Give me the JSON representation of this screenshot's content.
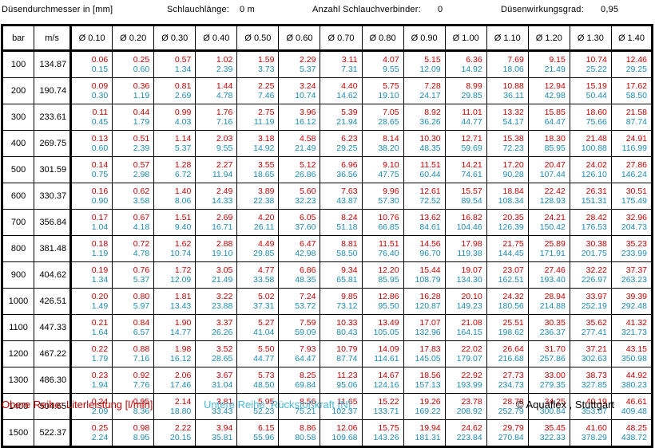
{
  "header": {
    "diameter_label": "Düsendurchmesser in [mm]",
    "hose_length_label": "Schlauchlänge:",
    "hose_length_value": "0 m",
    "connectors_label": "Anzahl Schlauchverbinder:",
    "connectors_value": "0",
    "efficiency_label": "Düsenwirkungsgrad:",
    "efficiency_value": "0,95"
  },
  "table": {
    "col_bar": "bar",
    "col_ms": "m/s",
    "nozzles": [
      "Ø 0.10",
      "Ø 0.20",
      "Ø 0.30",
      "Ø 0.40",
      "Ø 0.50",
      "Ø 0.60",
      "Ø 0.70",
      "Ø 0.80",
      "Ø 0.90",
      "Ø 1.00",
      "Ø 1.10",
      "Ø 1.20",
      "Ø 1.30",
      "Ø 1.40"
    ],
    "rows": [
      {
        "bar": "100",
        "ms": "134.87",
        "cells": [
          [
            "0.06",
            "0.15"
          ],
          [
            "0.25",
            "0.60"
          ],
          [
            "0.57",
            "1.34"
          ],
          [
            "1.02",
            "2.39"
          ],
          [
            "1.59",
            "3.73"
          ],
          [
            "2.29",
            "5.37"
          ],
          [
            "3.11",
            "7.31"
          ],
          [
            "4.07",
            "9.55"
          ],
          [
            "5.15",
            "12.09"
          ],
          [
            "6.36",
            "14.92"
          ],
          [
            "7.69",
            "18.06"
          ],
          [
            "9.15",
            "21.49"
          ],
          [
            "10.74",
            "25.22"
          ],
          [
            "12.46",
            "29.25"
          ]
        ]
      },
      {
        "bar": "200",
        "ms": "190.74",
        "cells": [
          [
            "0.09",
            "0.30"
          ],
          [
            "0.36",
            "1.19"
          ],
          [
            "0.81",
            "2.69"
          ],
          [
            "1.44",
            "4.78"
          ],
          [
            "2.25",
            "7.46"
          ],
          [
            "3.24",
            "10.74"
          ],
          [
            "4.40",
            "14.62"
          ],
          [
            "5.75",
            "19.10"
          ],
          [
            "7.28",
            "24.17"
          ],
          [
            "8.99",
            "29.85"
          ],
          [
            "10.88",
            "36.11"
          ],
          [
            "12.94",
            "42.98"
          ],
          [
            "15.19",
            "50.44"
          ],
          [
            "17.62",
            "58.50"
          ]
        ]
      },
      {
        "bar": "300",
        "ms": "233.61",
        "cells": [
          [
            "0.11",
            "0.45"
          ],
          [
            "0.44",
            "1.79"
          ],
          [
            "0.99",
            "4.03"
          ],
          [
            "1.76",
            "7.16"
          ],
          [
            "2.75",
            "11.19"
          ],
          [
            "3.96",
            "16.12"
          ],
          [
            "5.39",
            "21.94"
          ],
          [
            "7.05",
            "28.65"
          ],
          [
            "8.92",
            "36.26"
          ],
          [
            "11.01",
            "44.77"
          ],
          [
            "13.32",
            "54.17"
          ],
          [
            "15.85",
            "64.47"
          ],
          [
            "18.60",
            "75.66"
          ],
          [
            "21.58",
            "87.74"
          ]
        ]
      },
      {
        "bar": "400",
        "ms": "269.75",
        "cells": [
          [
            "0.13",
            "0.60"
          ],
          [
            "0.51",
            "2.39"
          ],
          [
            "1.14",
            "5.37"
          ],
          [
            "2.03",
            "9.55"
          ],
          [
            "3.18",
            "14.92"
          ],
          [
            "4.58",
            "21.49"
          ],
          [
            "6.23",
            "29.25"
          ],
          [
            "8.14",
            "38.20"
          ],
          [
            "10.30",
            "48.35"
          ],
          [
            "12.71",
            "59.69"
          ],
          [
            "15.38",
            "72.23"
          ],
          [
            "18.30",
            "85.95"
          ],
          [
            "21.48",
            "100.88"
          ],
          [
            "24.91",
            "116.99"
          ]
        ]
      },
      {
        "bar": "500",
        "ms": "301.59",
        "cells": [
          [
            "0.14",
            "0.75"
          ],
          [
            "0.57",
            "2.98"
          ],
          [
            "1.28",
            "6.72"
          ],
          [
            "2.27",
            "11.94"
          ],
          [
            "3.55",
            "18.65"
          ],
          [
            "5.12",
            "26.86"
          ],
          [
            "6.96",
            "36.56"
          ],
          [
            "9.10",
            "47.75"
          ],
          [
            "11.51",
            "60.44"
          ],
          [
            "14.21",
            "74.61"
          ],
          [
            "17.20",
            "90.28"
          ],
          [
            "20.47",
            "107.44"
          ],
          [
            "24.02",
            "126.10"
          ],
          [
            "27.86",
            "146.24"
          ]
        ]
      },
      {
        "bar": "600",
        "ms": "330.37",
        "cells": [
          [
            "0.16",
            "0.90"
          ],
          [
            "0.62",
            "3.58"
          ],
          [
            "1.40",
            "8.06"
          ],
          [
            "2.49",
            "14.33"
          ],
          [
            "3.89",
            "22.38"
          ],
          [
            "5.60",
            "32.23"
          ],
          [
            "7.63",
            "43.87"
          ],
          [
            "9.96",
            "57.30"
          ],
          [
            "12.61",
            "72.52"
          ],
          [
            "15.57",
            "89.54"
          ],
          [
            "18.84",
            "108.34"
          ],
          [
            "22.42",
            "128.93"
          ],
          [
            "26.31",
            "151.31"
          ],
          [
            "30.51",
            "175.49"
          ]
        ]
      },
      {
        "bar": "700",
        "ms": "356.84",
        "cells": [
          [
            "0.17",
            "1.04"
          ],
          [
            "0.67",
            "4.18"
          ],
          [
            "1.51",
            "9.40"
          ],
          [
            "2.69",
            "16.71"
          ],
          [
            "4.20",
            "26.11"
          ],
          [
            "6.05",
            "37.60"
          ],
          [
            "8.24",
            "51.18"
          ],
          [
            "10.76",
            "66.85"
          ],
          [
            "13.62",
            "84.61"
          ],
          [
            "16.82",
            "104.46"
          ],
          [
            "20.35",
            "126.39"
          ],
          [
            "24.21",
            "150.42"
          ],
          [
            "28.42",
            "176.53"
          ],
          [
            "32.96",
            "204.73"
          ]
        ]
      },
      {
        "bar": "800",
        "ms": "381.48",
        "cells": [
          [
            "0.18",
            "1.19"
          ],
          [
            "0.72",
            "4.78"
          ],
          [
            "1.62",
            "10.74"
          ],
          [
            "2.88",
            "19.10"
          ],
          [
            "4.49",
            "29.85"
          ],
          [
            "6.47",
            "42.98"
          ],
          [
            "8.81",
            "58.50"
          ],
          [
            "11.51",
            "76.40"
          ],
          [
            "14.56",
            "96.70"
          ],
          [
            "17.98",
            "119.38"
          ],
          [
            "21.75",
            "144.45"
          ],
          [
            "25.89",
            "171.91"
          ],
          [
            "30.38",
            "201.75"
          ],
          [
            "35.23",
            "233.99"
          ]
        ]
      },
      {
        "bar": "900",
        "ms": "404.62",
        "cells": [
          [
            "0.19",
            "1.34"
          ],
          [
            "0.76",
            "5.37"
          ],
          [
            "1.72",
            "12.09"
          ],
          [
            "3.05",
            "21.49"
          ],
          [
            "4.77",
            "33.58"
          ],
          [
            "6.86",
            "48.35"
          ],
          [
            "9.34",
            "65.81"
          ],
          [
            "12.20",
            "85.95"
          ],
          [
            "15.44",
            "108.79"
          ],
          [
            "19.07",
            "134.30"
          ],
          [
            "23.07",
            "162.51"
          ],
          [
            "27.46",
            "193.40"
          ],
          [
            "32.22",
            "226.97"
          ],
          [
            "37.37",
            "263.23"
          ]
        ]
      },
      {
        "bar": "1000",
        "ms": "426.51",
        "cells": [
          [
            "0.20",
            "1.49"
          ],
          [
            "0.80",
            "5.97"
          ],
          [
            "1.81",
            "13.43"
          ],
          [
            "3.22",
            "23.88"
          ],
          [
            "5.02",
            "37.31"
          ],
          [
            "7.24",
            "53.72"
          ],
          [
            "9.85",
            "73.12"
          ],
          [
            "12.86",
            "95.50"
          ],
          [
            "16.28",
            "120.87"
          ],
          [
            "20.10",
            "149.23"
          ],
          [
            "24.32",
            "180.56"
          ],
          [
            "28.94",
            "214.88"
          ],
          [
            "33.97",
            "252.19"
          ],
          [
            "39.39",
            "292.48"
          ]
        ]
      },
      {
        "bar": "1100",
        "ms": "447.33",
        "cells": [
          [
            "0.21",
            "1.64"
          ],
          [
            "0.84",
            "6.57"
          ],
          [
            "1.90",
            "14.77"
          ],
          [
            "3.37",
            "26.26"
          ],
          [
            "5.27",
            "41.04"
          ],
          [
            "7.59",
            "59.09"
          ],
          [
            "10.33",
            "80.43"
          ],
          [
            "13.49",
            "105.05"
          ],
          [
            "17.07",
            "132.96"
          ],
          [
            "21.08",
            "164.15"
          ],
          [
            "25.51",
            "198.62"
          ],
          [
            "30.35",
            "236.37"
          ],
          [
            "35.62",
            "277.41"
          ],
          [
            "41.32",
            "321.73"
          ]
        ]
      },
      {
        "bar": "1200",
        "ms": "467.22",
        "cells": [
          [
            "0.22",
            "1.79"
          ],
          [
            "0.88",
            "7.16"
          ],
          [
            "1.98",
            "16.12"
          ],
          [
            "3.52",
            "28.65"
          ],
          [
            "5.50",
            "44.77"
          ],
          [
            "7.93",
            "64.47"
          ],
          [
            "10.79",
            "87.74"
          ],
          [
            "14.09",
            "114.61"
          ],
          [
            "17.83",
            "145.05"
          ],
          [
            "22.02",
            "179.07"
          ],
          [
            "26.64",
            "216.68"
          ],
          [
            "31.70",
            "257.86"
          ],
          [
            "37.21",
            "302.63"
          ],
          [
            "43.15",
            "350.98"
          ]
        ]
      },
      {
        "bar": "1300",
        "ms": "486.30",
        "cells": [
          [
            "0.23",
            "1.94"
          ],
          [
            "0.92",
            "7.76"
          ],
          [
            "2.06",
            "17.46"
          ],
          [
            "3.67",
            "31.04"
          ],
          [
            "5.73",
            "48.50"
          ],
          [
            "8.25",
            "69.84"
          ],
          [
            "11.23",
            "95.06"
          ],
          [
            "14.67",
            "124.16"
          ],
          [
            "18.56",
            "157.13"
          ],
          [
            "22.92",
            "193.99"
          ],
          [
            "27.73",
            "234.73"
          ],
          [
            "33.00",
            "279.35"
          ],
          [
            "38.73",
            "327.85"
          ],
          [
            "44.92",
            "380.23"
          ]
        ]
      },
      {
        "bar": "1400",
        "ms": "504.65",
        "cells": [
          [
            "0.24",
            "2.09"
          ],
          [
            "0.95",
            "8.36"
          ],
          [
            "2.14",
            "18.80"
          ],
          [
            "3.81",
            "33.43"
          ],
          [
            "5.95",
            "52.23"
          ],
          [
            "8.56",
            "75.21"
          ],
          [
            "11.65",
            "102.37"
          ],
          [
            "15.22",
            "133.71"
          ],
          [
            "19.26",
            "169.22"
          ],
          [
            "23.78",
            "208.92"
          ],
          [
            "28.78",
            "252.79"
          ],
          [
            "34.25",
            "300.84"
          ],
          [
            "40.19",
            "353.07"
          ],
          [
            "46.61",
            "409.48"
          ]
        ]
      },
      {
        "bar": "1500",
        "ms": "522.37",
        "cells": [
          [
            "0.25",
            "2.24"
          ],
          [
            "0.98",
            "8.95"
          ],
          [
            "2.22",
            "20.15"
          ],
          [
            "3.94",
            "35.81"
          ],
          [
            "6.15",
            "55.96"
          ],
          [
            "8.86",
            "80.58"
          ],
          [
            "12.06",
            "109.68"
          ],
          [
            "15.75",
            "143.26"
          ],
          [
            "19.94",
            "181.31"
          ],
          [
            "24.62",
            "223.84"
          ],
          [
            "29.79",
            "270.84"
          ],
          [
            "35.45",
            "322.33"
          ],
          [
            "41.60",
            "378.29"
          ],
          [
            "48.25",
            "438.72"
          ]
        ]
      }
    ]
  },
  "footer": {
    "obere_reihe": "Obere Reihe: Literleistung [l/min]",
    "untere_reihe": "Untere Reihe: Rückstoßkraft [N]",
    "copyright": "© Aquaflex , Stuttgart"
  },
  "colors": {
    "literleistung": "#cc0000",
    "rueckstoss": "#1e8cb4",
    "footer_untere": "#48b8dc"
  }
}
